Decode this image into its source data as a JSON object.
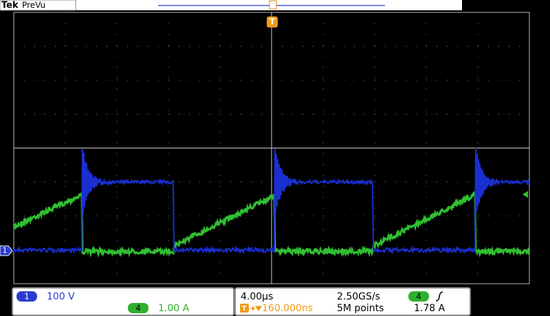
{
  "header": {
    "brand": "Tek",
    "mode": "PreVu"
  },
  "markers": {
    "trigger": "T",
    "channel": "1"
  },
  "channels": [
    {
      "number": "1",
      "scale": "100 V"
    },
    {
      "number": "4",
      "scale": "1.00 A"
    }
  ],
  "timebase": {
    "horizontal_scale": "4.00µs",
    "sample_rate": "2.50GS/s",
    "trigger_icon": "T",
    "trigger_position": "160.000ns",
    "record_length": "5M points"
  },
  "trigger": {
    "source": "4",
    "level": "1.78 A"
  }
}
